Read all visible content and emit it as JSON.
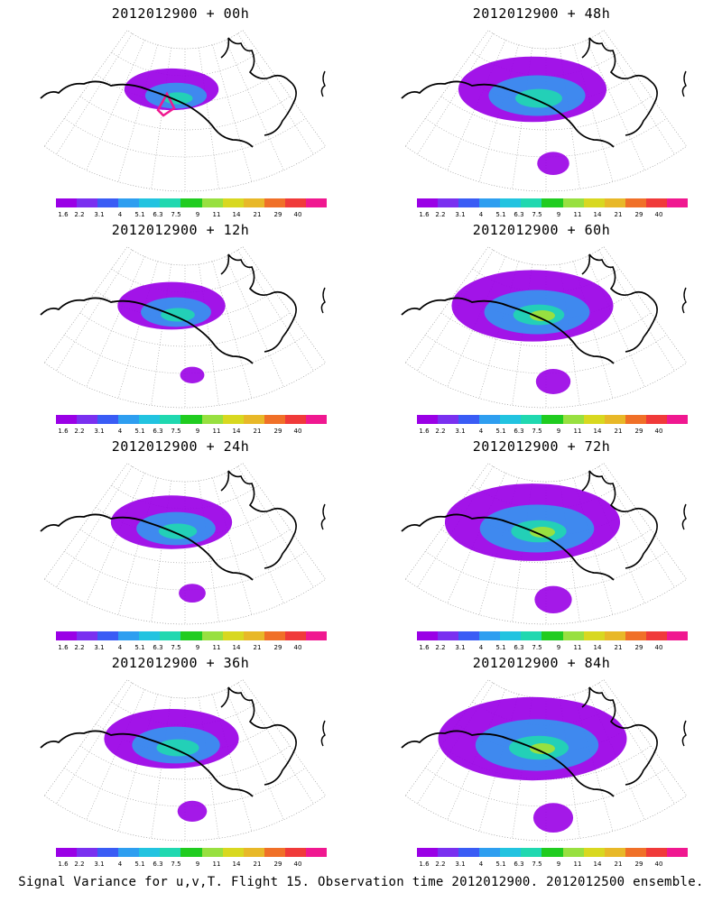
{
  "caption": "Signal Variance for u,v,T. Flight 15. Observation time 2012012900. 2012012500 ensemble.",
  "colorbar": {
    "labels": [
      "1.6",
      "2.2",
      "3.1",
      "4",
      "5.1",
      "6.3",
      "7.5",
      "9",
      "11",
      "14",
      "21",
      "29",
      "40"
    ],
    "colors": [
      "#9a00e6",
      "#7a30f0",
      "#3a5cf5",
      "#2e9ef0",
      "#22c3e0",
      "#20d8b0",
      "#20cc20",
      "#98e040",
      "#d8d820",
      "#e8b828",
      "#f07028",
      "#f03a3a",
      "#f01890"
    ]
  },
  "panels": [
    {
      "title": "2012012900 + 00h",
      "lead": 0
    },
    {
      "title": "2012012900 + 48h",
      "lead": 48
    },
    {
      "title": "2012012900 + 12h",
      "lead": 12
    },
    {
      "title": "2012012900 + 60h",
      "lead": 60
    },
    {
      "title": "2012012900 + 24h",
      "lead": 24
    },
    {
      "title": "2012012900 + 72h",
      "lead": 72
    },
    {
      "title": "2012012900 + 36h",
      "lead": 36
    },
    {
      "title": "2012012900 + 84h",
      "lead": 84
    }
  ]
}
